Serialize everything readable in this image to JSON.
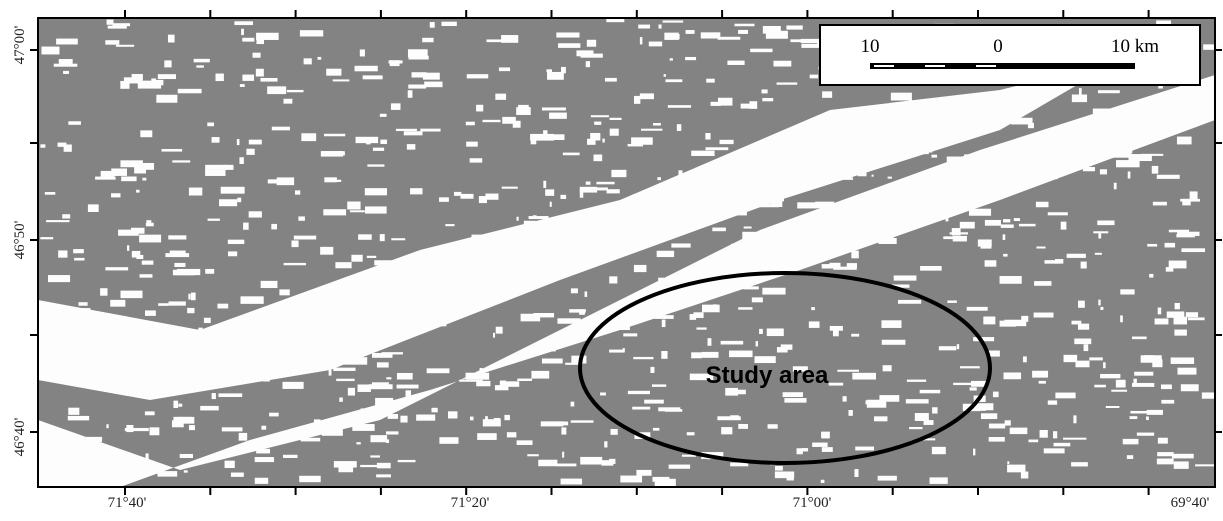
{
  "map": {
    "x_labels": [
      "71°40'",
      "71°20'",
      "71°00'",
      "69°40'"
    ],
    "y_labels": [
      "47°00'",
      "46°50'",
      "46°40'"
    ],
    "scale_bar": {
      "left": "10",
      "middle": "0",
      "right": "10 km"
    },
    "annotation": "Study area"
  }
}
